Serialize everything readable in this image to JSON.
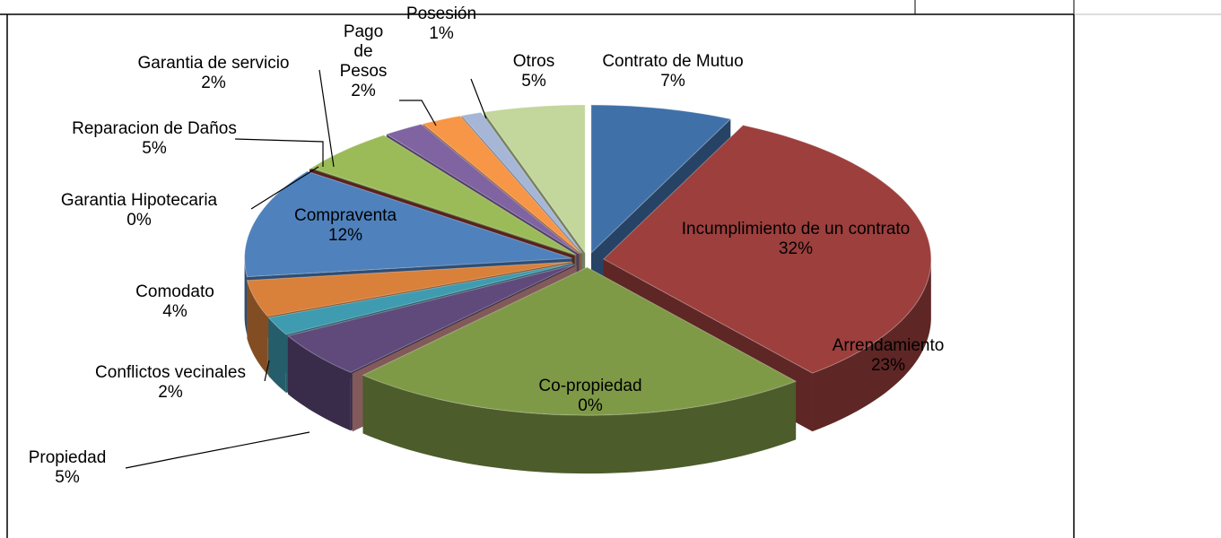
{
  "chart_data": {
    "type": "pie",
    "categories": [
      "Contrato de Mutuo",
      "Incumplimiento de un contrato",
      "Arrendamiento",
      "Co-propiedad",
      "Propiedad",
      "Conflictos vecinales",
      "Comodato",
      "Compraventa",
      "Garantia Hipotecaria",
      "Reparacion de Daños",
      "Garantia de servicio",
      "Pago de Pesos",
      "Posesión",
      "Otros"
    ],
    "values": [
      7,
      32,
      23,
      0,
      5,
      2,
      4,
      12,
      0,
      5,
      2,
      2,
      1,
      5
    ],
    "value_labels": [
      "7%",
      "32%",
      "23%",
      "0%",
      "5%",
      "2%",
      "4%",
      "12%",
      "0%",
      "5%",
      "2%",
      "2%",
      "1%",
      "5%"
    ],
    "colors": [
      "#4070a8",
      "#9c3f3d",
      "#7f9a47",
      "#d99694",
      "#5f4a7b",
      "#3f9bb0",
      "#d9803a",
      "#4f81bd",
      "#953735",
      "#9bbb59",
      "#8064a2",
      "#f79646",
      "#a5b6d6",
      "#c3d69b"
    ]
  }
}
